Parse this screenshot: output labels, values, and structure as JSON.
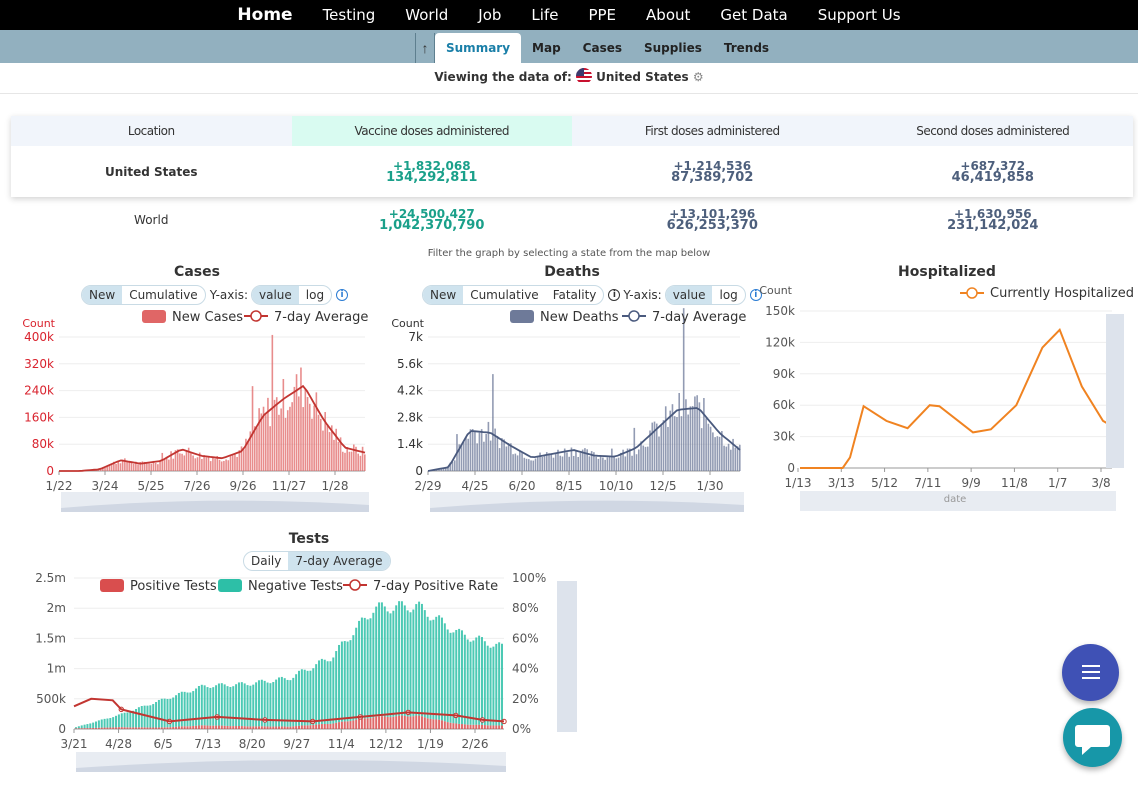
{
  "nav": {
    "items": [
      "Home",
      "Testing",
      "World",
      "Job",
      "Life",
      "PPE",
      "About",
      "Get Data",
      "Support Us"
    ]
  },
  "subnav": {
    "up_icon": "arrow-up-icon",
    "tabs": [
      "Summary",
      "Map",
      "Cases",
      "Supplies",
      "Trends"
    ],
    "active_tab": "Summary"
  },
  "viewing": {
    "label": "Viewing the data of:",
    "location": "United States",
    "gear_icon": "⚙"
  },
  "vaccine_table": {
    "headers": [
      "Location",
      "Vaccine doses administered",
      "First doses administered",
      "Second doses administered"
    ],
    "rows": [
      {
        "location": "United States",
        "doses_delta": "+1,832,068",
        "doses_total": "134,292,811",
        "first_delta": "+1,214,536",
        "first_total": "87,389,702",
        "second_delta": "+687,372",
        "second_total": "46,419,858"
      },
      {
        "location": "World",
        "doses_delta": "+24,500,427",
        "doses_total": "1,042,370,790",
        "first_delta": "+13,101,296",
        "first_total": "626,253,370",
        "second_delta": "+1,630,956",
        "second_total": "231,142,024"
      }
    ],
    "colors": {
      "teal": "#1aa08a",
      "slate": "#4d5f7c"
    }
  },
  "filter_note": "Filter the graph by selecting a state from the map below",
  "cases": {
    "title": "Cases",
    "mode_options": [
      "New",
      "Cumulative"
    ],
    "active_mode": "New",
    "yaxis_label": "Y-axis:",
    "scale_options": [
      "value",
      "log"
    ],
    "active_scale": "value"
  },
  "deaths": {
    "title": "Deaths",
    "mode_options": [
      "New",
      "Cumulative",
      "Fatality"
    ],
    "active_mode": "New",
    "yaxis_label": "Y-axis:",
    "scale_options": [
      "value",
      "log"
    ],
    "active_scale": "value"
  },
  "hospitalized": {
    "title": "Hospitalized"
  },
  "tests": {
    "title": "Tests",
    "mode_options": [
      "Daily",
      "7-day Average"
    ],
    "active_mode": "7-day Average"
  },
  "chart_data": [
    {
      "type": "bar",
      "title": "Cases",
      "ylabel": "Count",
      "x_ticks": [
        "1/22",
        "3/24",
        "5/25",
        "7/26",
        "9/26",
        "11/27",
        "1/28"
      ],
      "y_ticks": [
        "0",
        "80k",
        "160k",
        "240k",
        "320k",
        "400k"
      ],
      "ylim": [
        0,
        400000
      ],
      "legend_position": "top-right",
      "series": [
        {
          "name": "New Cases",
          "type": "bar",
          "color": "#e06666"
        },
        {
          "name": "7-day Average",
          "type": "line",
          "color": "#c23531"
        }
      ],
      "x": [
        "1/22",
        "2/22",
        "3/24",
        "4/24",
        "5/25",
        "6/25",
        "7/26",
        "8/26",
        "9/26",
        "10/27",
        "11/27",
        "12/28",
        "1/10",
        "1/28",
        "2/28",
        "3/15"
      ],
      "values_7day": [
        0,
        0,
        5000,
        32000,
        22000,
        30000,
        65000,
        45000,
        38000,
        60000,
        165000,
        215000,
        255000,
        150000,
        70000,
        55000
      ]
    },
    {
      "type": "bar",
      "title": "Deaths",
      "ylabel": "Count",
      "x_ticks": [
        "2/29",
        "4/25",
        "6/20",
        "8/15",
        "10/10",
        "12/5",
        "1/30"
      ],
      "y_ticks": [
        "0",
        "1.4k",
        "2.8k",
        "4.2k",
        "5.6k",
        "7k"
      ],
      "ylim": [
        0,
        7000
      ],
      "legend_position": "top-right",
      "series": [
        {
          "name": "New Deaths",
          "type": "bar",
          "color": "#6e7a99"
        },
        {
          "name": "7-day Average",
          "type": "line",
          "color": "#4a5a7e"
        }
      ],
      "x": [
        "2/29",
        "3/28",
        "4/15",
        "4/25",
        "5/20",
        "6/20",
        "7/20",
        "8/15",
        "9/10",
        "10/10",
        "11/8",
        "12/5",
        "1/5",
        "1/30",
        "2/20",
        "3/15"
      ],
      "values_7day": [
        0,
        200,
        2100,
        2000,
        1300,
        700,
        900,
        1100,
        800,
        750,
        1200,
        2200,
        3200,
        3300,
        2000,
        1100
      ]
    },
    {
      "type": "line",
      "title": "Hospitalized",
      "ylabel": "Count",
      "xlabel": "date",
      "x_ticks": [
        "1/13",
        "3/13",
        "5/12",
        "7/11",
        "9/9",
        "11/8",
        "1/7",
        "3/8"
      ],
      "y_ticks": [
        "0",
        "30k",
        "60k",
        "90k",
        "120k",
        "150k"
      ],
      "ylim": [
        0,
        150000
      ],
      "legend_position": "top-right",
      "series": [
        {
          "name": "Currently Hospitalized",
          "color": "#f08321",
          "x": [
            "1/13",
            "3/13",
            "3/25",
            "4/15",
            "5/12",
            "6/15",
            "7/11",
            "7/25",
            "9/9",
            "10/5",
            "11/8",
            "12/15",
            "1/7",
            "2/7",
            "3/8",
            "3/20"
          ],
          "values": [
            0,
            0,
            10000,
            59000,
            45000,
            38000,
            60000,
            59000,
            34000,
            37000,
            60000,
            115000,
            132000,
            78000,
            45000,
            40000
          ]
        }
      ]
    },
    {
      "type": "bar",
      "title": "Tests",
      "x_ticks": [
        "3/21",
        "4/28",
        "6/5",
        "7/13",
        "8/20",
        "9/27",
        "11/4",
        "12/12",
        "1/19",
        "2/26"
      ],
      "y_ticks": [
        "0",
        "500k",
        "1m",
        "1.5m",
        "2m",
        "2.5m"
      ],
      "ylim": [
        0,
        2500000
      ],
      "y2_ticks": [
        "0%",
        "20%",
        "40%",
        "60%",
        "80%",
        "100%"
      ],
      "y2lim": [
        0,
        100
      ],
      "legend_position": "top",
      "series": [
        {
          "name": "Positive Tests",
          "type": "bar",
          "color": "#d94e4e",
          "x": [
            "3/21",
            "4/28",
            "6/5",
            "7/13",
            "8/20",
            "9/27",
            "11/4",
            "12/12",
            "1/19",
            "2/26",
            "3/15"
          ],
          "values": [
            10000,
            30000,
            25000,
            60000,
            45000,
            40000,
            90000,
            200000,
            220000,
            80000,
            55000
          ]
        },
        {
          "name": "Negative Tests",
          "type": "bar",
          "color": "#2dbfa7",
          "x": [
            "3/21",
            "4/28",
            "6/5",
            "7/13",
            "8/20",
            "9/27",
            "11/4",
            "12/12",
            "1/19",
            "2/26",
            "3/15"
          ],
          "values": [
            20000,
            200000,
            450000,
            650000,
            700000,
            800000,
            1100000,
            1800000,
            1820000,
            1500000,
            1300000
          ]
        },
        {
          "name": "7-day Positive Rate",
          "type": "line",
          "axis": "y2",
          "color": "#c23531",
          "x": [
            "3/21",
            "3/30",
            "4/10",
            "4/28",
            "6/5",
            "7/13",
            "8/20",
            "9/27",
            "11/4",
            "12/12",
            "1/19",
            "2/26",
            "3/15"
          ],
          "values": [
            15,
            20,
            19,
            13,
            5,
            8,
            6,
            5,
            8,
            11,
            9,
            6,
            5
          ]
        }
      ]
    }
  ]
}
